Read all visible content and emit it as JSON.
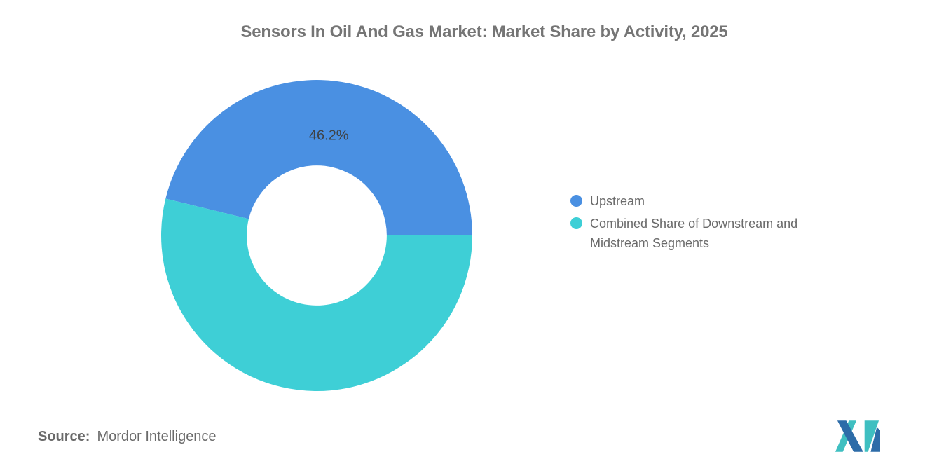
{
  "title": "Sensors In Oil And Gas Market: Market Share by Activity, 2025",
  "chart_data": {
    "type": "pie",
    "subtype": "donut",
    "title": "Sensors In Oil And Gas Market: Market Share by Activity, 2025",
    "slices": [
      {
        "label": "Upstream",
        "value": 46.2,
        "data_label": "46.2%",
        "color": "#4a90e2"
      },
      {
        "label": "Combined Share of Downstream and Midstream Segments",
        "value": 53.8,
        "data_label": "",
        "color": "#3ecfd6"
      }
    ],
    "inner_radius_ratio": 0.45,
    "start_angle_deg": 0,
    "direction": "counterclockwise",
    "legend_position": "right",
    "data_label_color": "#3f4245",
    "background": "#ffffff"
  },
  "source": {
    "label": "Source:",
    "text": "Mordor Intelligence"
  },
  "logo_colors": {
    "teal": "#3fbfc1",
    "blue": "#2d6ca8"
  },
  "text_colors": {
    "title": "#757575",
    "legend": "#6a6a6a",
    "source": "#6b6b6b"
  }
}
